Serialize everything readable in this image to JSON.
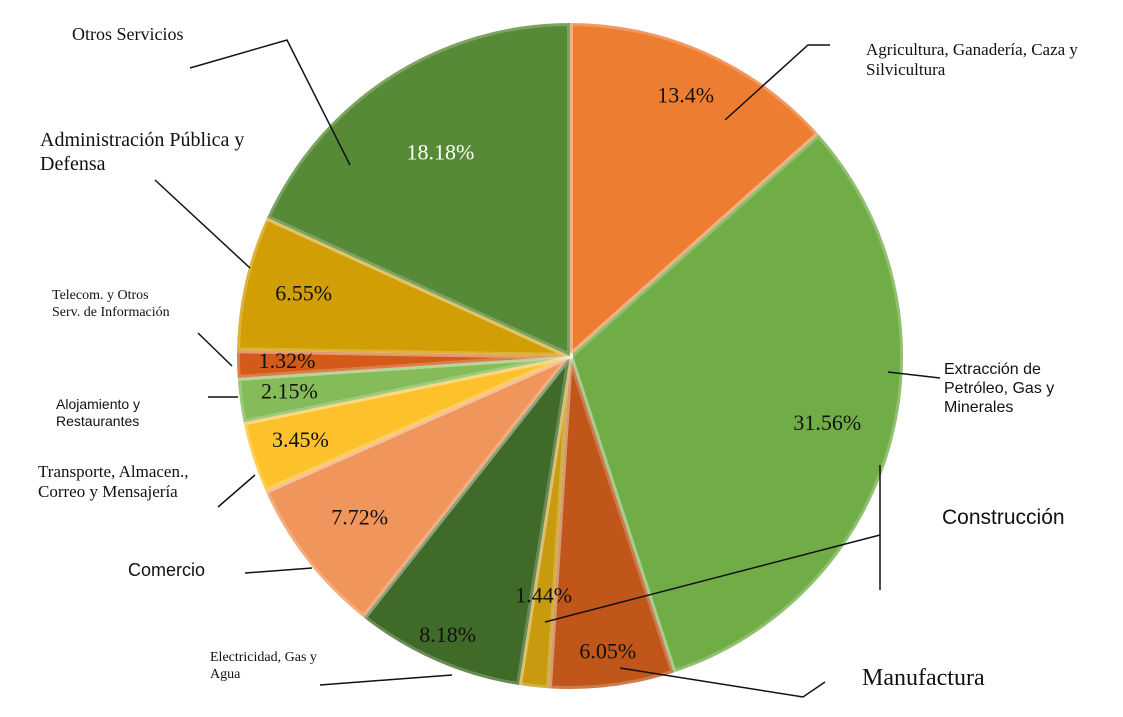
{
  "chart_data": {
    "type": "pie",
    "categories": [
      "Agricultura, Ganadería, Caza y Silvicultura",
      "Extracción de Petróleo, Gas y Minerales",
      "Manufactura",
      "Construcción",
      "Electricidad, Gas y Agua",
      "Comercio",
      "Transporte, Almacen., Correo y Mensajería",
      "Alojamiento y Restaurantes",
      "Telecom. y Otros Serv. de Información",
      "Administración Pública y Defensa",
      "Otros Servicios"
    ],
    "values": [
      13.4,
      31.56,
      6.05,
      1.44,
      8.18,
      7.72,
      3.45,
      2.15,
      1.32,
      6.55,
      18.18
    ],
    "value_labels": [
      "13.4%",
      "31.56%",
      "6.05%",
      "1.44%",
      "8.18%",
      "7.72%",
      "3.45%",
      "2.15%",
      "1.32%",
      "6.55%",
      "18.18%"
    ],
    "colors": [
      "#ed7d31",
      "#70ad47",
      "#c0561a",
      "#c79a10",
      "#3f6a28",
      "#f0965c",
      "#fdc12c",
      "#86bb5a",
      "#d35a18",
      "#d19e05",
      "#568a36"
    ]
  }
}
